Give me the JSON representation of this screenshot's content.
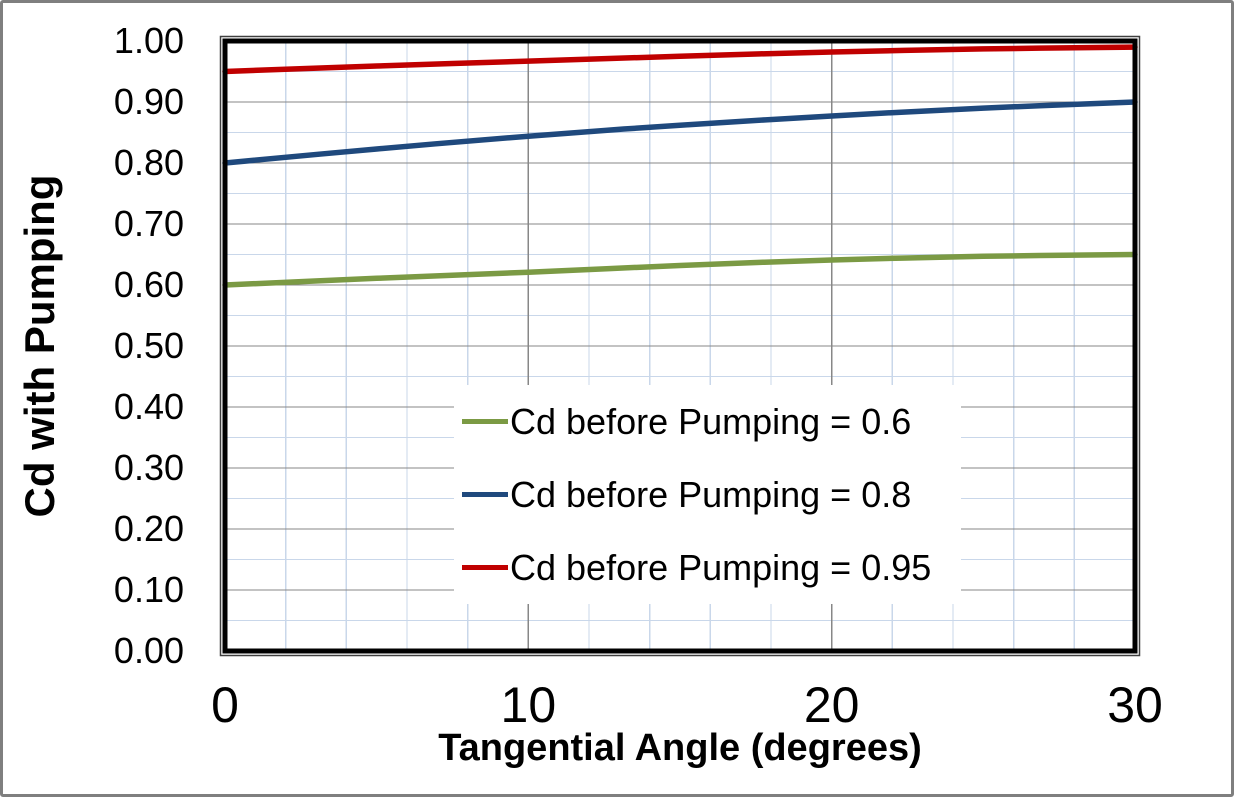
{
  "window": {
    "background": "#ffffff",
    "border_color": "#7f7f7f"
  },
  "chart_data": {
    "type": "line",
    "title": "",
    "xlabel": "Tangential Angle (degrees)",
    "ylabel": "Cd with Pumping",
    "xlim": [
      0,
      30
    ],
    "ylim": [
      0.0,
      1.0
    ],
    "x_major_ticks": [
      0,
      10,
      20,
      30
    ],
    "x_tick_labels": [
      "0",
      "10",
      "20",
      "30"
    ],
    "y_major_ticks": [
      0.0,
      0.1,
      0.2,
      0.3,
      0.4,
      0.5,
      0.6,
      0.7,
      0.8,
      0.9,
      1.0
    ],
    "y_tick_labels": [
      "0.00",
      "0.10",
      "0.20",
      "0.30",
      "0.40",
      "0.50",
      "0.60",
      "0.70",
      "0.80",
      "0.90",
      "1.00"
    ],
    "x_minor_step": 2,
    "y_minor_step": 0.05,
    "grid": {
      "major_on": true,
      "minor_on": true,
      "major_color": "#878787",
      "minor_color": "#c9d7ea"
    },
    "plot_border_color": "#000000",
    "legend_position": "inside-center",
    "x": [
      0,
      5,
      10,
      15,
      20,
      25,
      30
    ],
    "series": [
      {
        "name": "Cd before Pumping = 0.6",
        "color": "#7b9a44",
        "values": [
          0.6,
          0.611,
          0.621,
          0.632,
          0.641,
          0.647,
          0.65
        ]
      },
      {
        "name": "Cd before Pumping = 0.8",
        "color": "#1f497d",
        "values": [
          0.8,
          0.823,
          0.844,
          0.862,
          0.877,
          0.89,
          0.9
        ]
      },
      {
        "name": "Cd before Pumping = 0.95",
        "color": "#c00000",
        "values": [
          0.95,
          0.959,
          0.967,
          0.975,
          0.982,
          0.987,
          0.99
        ]
      }
    ]
  }
}
